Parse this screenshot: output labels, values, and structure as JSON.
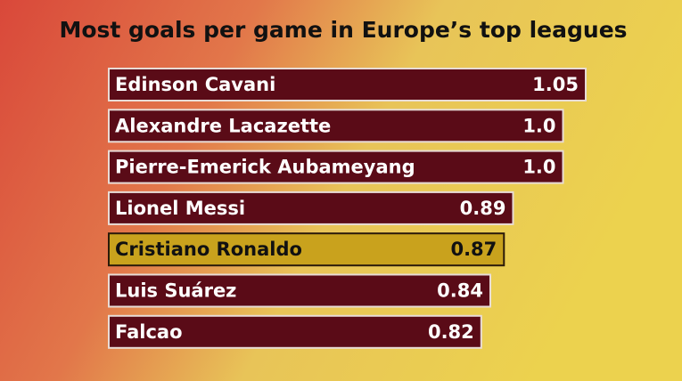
{
  "chart_data": {
    "type": "bar",
    "orientation": "horizontal",
    "title": "Most goals per game in Europe’s top leagues",
    "categories": [
      "Edinson Cavani",
      "Alexandre Lacazette",
      "Pierre-Emerick Aubameyang",
      "Lionel Messi",
      "Cristiano Ronaldo",
      "Luis Suárez",
      "Falcao"
    ],
    "values": [
      1.05,
      1.0,
      1.0,
      0.89,
      0.87,
      0.84,
      0.82
    ],
    "value_labels": [
      "1.05",
      "1.0",
      "1.0",
      "0.89",
      "0.87",
      "0.84",
      "0.82"
    ],
    "colors": [
      "#5a0b17",
      "#5a0b17",
      "#5a0b17",
      "#5a0b17",
      "#c9a21d",
      "#5a0b17",
      "#5a0b17"
    ]
  }
}
